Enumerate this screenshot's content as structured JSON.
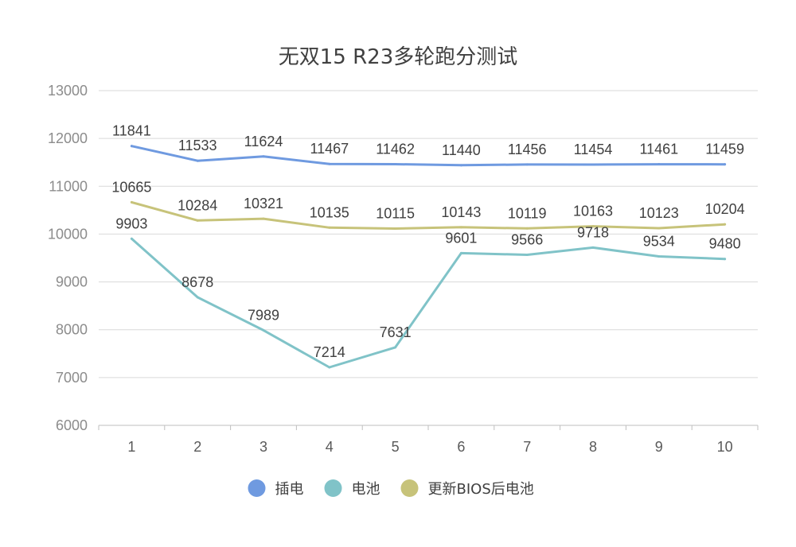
{
  "chart_data": {
    "type": "line",
    "title": "无双15 R23多轮跑分测试",
    "xlabel": "",
    "ylabel": "",
    "categories": [
      "1",
      "2",
      "3",
      "4",
      "5",
      "6",
      "7",
      "8",
      "9",
      "10"
    ],
    "ylim": [
      6000,
      13000
    ],
    "yticks": [
      "6000",
      "7000",
      "8000",
      "9000",
      "10000",
      "11000",
      "12000",
      "13000"
    ],
    "grid": true,
    "legend": "bottom",
    "series": [
      {
        "name": "插电",
        "color": "#6f9ae0",
        "values": [
          11841,
          11533,
          11624,
          11467,
          11462,
          11440,
          11456,
          11454,
          11461,
          11459
        ]
      },
      {
        "name": "电池",
        "color": "#80c3c8",
        "values": [
          9903,
          8678,
          7989,
          7214,
          7631,
          9601,
          9566,
          9718,
          9534,
          9480
        ]
      },
      {
        "name": "更新BIOS后电池",
        "color": "#c7c37a",
        "values": [
          10665,
          10284,
          10321,
          10135,
          10115,
          10143,
          10119,
          10163,
          10123,
          10204
        ]
      }
    ]
  }
}
